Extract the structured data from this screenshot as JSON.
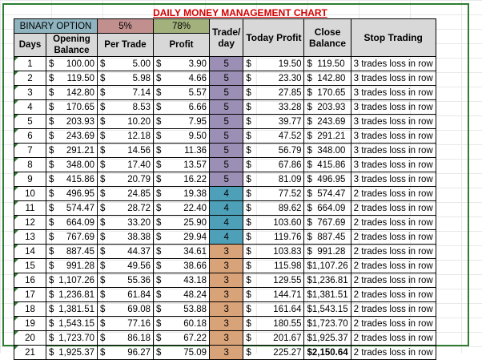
{
  "title": "DAILY MONEY MANAGEMENT CHART",
  "colors": {
    "title": "#d40000",
    "binary_bg": "#8fb4c0",
    "pct_bg": "#c28f8f",
    "profit_pct_bg": "#a3b27d",
    "trade5": "#9b8fb5",
    "trade4": "#4ea0b8",
    "trade3": "#d9a37a",
    "frame": "#2e7d32"
  },
  "top_row": {
    "binary_option": "BINARY OPTION",
    "per_trade_pct": "5%",
    "profit_pct": "78%"
  },
  "headers": {
    "days": "Days",
    "opening": "Opening Balance",
    "per_trade": "Per Trade",
    "profit": "Profit",
    "trade_day": "Trade/ day",
    "today_profit": "Today Profit",
    "close": "Close Balance",
    "stop": "Stop Trading"
  },
  "rows": [
    {
      "day": "1",
      "opening": "100.00",
      "per_trade": "5.00",
      "profit": "3.90",
      "trades": "5",
      "today": "19.50",
      "close": "$  119.50",
      "stop": "3 trades loss in row"
    },
    {
      "day": "2",
      "opening": "119.50",
      "per_trade": "5.98",
      "profit": "4.66",
      "trades": "5",
      "today": "23.30",
      "close": "$  142.80",
      "stop": "3 trades loss in row"
    },
    {
      "day": "3",
      "opening": "142.80",
      "per_trade": "7.14",
      "profit": "5.57",
      "trades": "5",
      "today": "27.85",
      "close": "$  170.65",
      "stop": "3 trades loss in row"
    },
    {
      "day": "4",
      "opening": "170.65",
      "per_trade": "8.53",
      "profit": "6.66",
      "trades": "5",
      "today": "33.28",
      "close": "$  203.93",
      "stop": "3 trades loss in row"
    },
    {
      "day": "5",
      "opening": "203.93",
      "per_trade": "10.20",
      "profit": "7.95",
      "trades": "5",
      "today": "39.77",
      "close": "$  243.69",
      "stop": "3 trades loss in row"
    },
    {
      "day": "6",
      "opening": "243.69",
      "per_trade": "12.18",
      "profit": "9.50",
      "trades": "5",
      "today": "47.52",
      "close": "$  291.21",
      "stop": "3 trades loss in row"
    },
    {
      "day": "7",
      "opening": "291.21",
      "per_trade": "14.56",
      "profit": "11.36",
      "trades": "5",
      "today": "56.79",
      "close": "$  348.00",
      "stop": "3 trades loss in row"
    },
    {
      "day": "8",
      "opening": "348.00",
      "per_trade": "17.40",
      "profit": "13.57",
      "trades": "5",
      "today": "67.86",
      "close": "$  415.86",
      "stop": "3 trades loss in row"
    },
    {
      "day": "9",
      "opening": "415.86",
      "per_trade": "20.79",
      "profit": "16.22",
      "trades": "5",
      "today": "81.09",
      "close": "$  496.95",
      "stop": "3 trades loss in row"
    },
    {
      "day": "10",
      "opening": "496.95",
      "per_trade": "24.85",
      "profit": "19.38",
      "trades": "4",
      "today": "77.52",
      "close": "$  574.47",
      "stop": "2 trades loss in row"
    },
    {
      "day": "11",
      "opening": "574.47",
      "per_trade": "28.72",
      "profit": "22.40",
      "trades": "4",
      "today": "89.62",
      "close": "$  664.09",
      "stop": "2 trades loss in row"
    },
    {
      "day": "12",
      "opening": "664.09",
      "per_trade": "33.20",
      "profit": "25.90",
      "trades": "4",
      "today": "103.60",
      "close": "$  767.69",
      "stop": "2 trades loss in row"
    },
    {
      "day": "13",
      "opening": "767.69",
      "per_trade": "38.38",
      "profit": "29.94",
      "trades": "4",
      "today": "119.76",
      "close": "$  887.45",
      "stop": "2 trades loss in row"
    },
    {
      "day": "14",
      "opening": "887.45",
      "per_trade": "44.37",
      "profit": "34.61",
      "trades": "3",
      "today": "103.83",
      "close": "$  991.28",
      "stop": "2 trades loss in row"
    },
    {
      "day": "15",
      "opening": "991.28",
      "per_trade": "49.56",
      "profit": "38.66",
      "trades": "3",
      "today": "115.98",
      "close": "$1,107.26",
      "stop": "2 trades loss in row"
    },
    {
      "day": "16",
      "opening": "1,107.26",
      "per_trade": "55.36",
      "profit": "43.18",
      "trades": "3",
      "today": "129.55",
      "close": "$1,236.81",
      "stop": "2 trades loss in row"
    },
    {
      "day": "17",
      "opening": "1,236.81",
      "per_trade": "61.84",
      "profit": "48.24",
      "trades": "3",
      "today": "144.71",
      "close": "$1,381.51",
      "stop": "2 trades loss in row"
    },
    {
      "day": "18",
      "opening": "1,381.51",
      "per_trade": "69.08",
      "profit": "53.88",
      "trades": "3",
      "today": "161.64",
      "close": "$1,543.15",
      "stop": "2 trades loss in row"
    },
    {
      "day": "19",
      "opening": "1,543.15",
      "per_trade": "77.16",
      "profit": "60.18",
      "trades": "3",
      "today": "180.55",
      "close": "$1,723.70",
      "stop": "2 trades loss in row"
    },
    {
      "day": "20",
      "opening": "1,723.70",
      "per_trade": "86.18",
      "profit": "67.22",
      "trades": "3",
      "today": "201.67",
      "close": "$1,925.37",
      "stop": "2 trades loss in row"
    },
    {
      "day": "21",
      "opening": "1,925.37",
      "per_trade": "96.27",
      "profit": "75.09",
      "trades": "3",
      "today": "225.27",
      "close": "$2,150.64",
      "stop": "2 trades loss in row"
    }
  ],
  "currency": "$"
}
